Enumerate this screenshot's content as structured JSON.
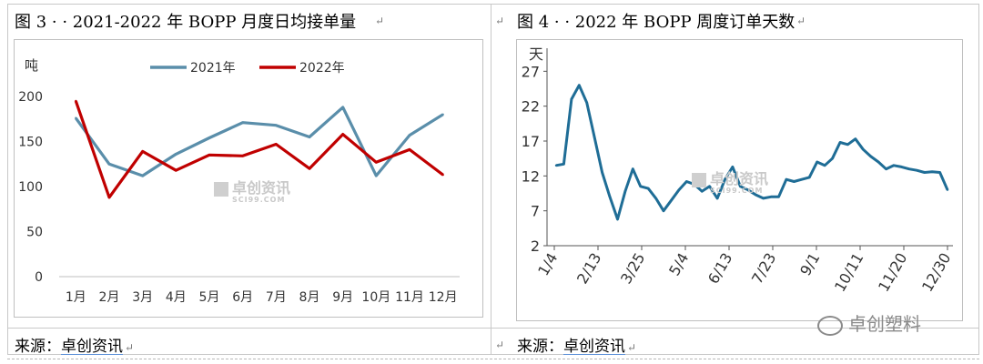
{
  "left": {
    "title": "图 3 · · 2021-2022 年 BOPP 月度日均接单量",
    "source_label": "来源：",
    "source_name": "卓创资讯",
    "watermark_cn": "卓创资讯",
    "watermark_en": "SCI99.COM"
  },
  "right": {
    "title": "图 4 · · 2022 年 BOPP 周度订单天数",
    "source_label": "来源：",
    "source_name": "卓创资讯",
    "watermark_cn": "卓创资讯",
    "watermark_en": "SCI99.COM"
  },
  "logo_text": "卓创塑料",
  "para_mark": "↵",
  "chart_data": [
    {
      "type": "line",
      "ylabel": "吨",
      "ylim": [
        0,
        200
      ],
      "yticks": [
        0,
        50,
        100,
        150,
        200
      ],
      "categories": [
        "1月",
        "2月",
        "3月",
        "4月",
        "5月",
        "6月",
        "7月",
        "8月",
        "9月",
        "10月",
        "11月",
        "12月"
      ],
      "series": [
        {
          "name": "2021年",
          "color": "#5a8eaa",
          "values": [
            176,
            125,
            112,
            136,
            154,
            171,
            168,
            155,
            188,
            112,
            157,
            180
          ]
        },
        {
          "name": "2022年",
          "color": "#c00000",
          "values": [
            195,
            88,
            139,
            118,
            135,
            134,
            147,
            120,
            158,
            127,
            141,
            113
          ]
        }
      ],
      "legend": "top"
    },
    {
      "type": "line",
      "ylabel": "天",
      "ylim": [
        2,
        29
      ],
      "yticks": [
        2,
        7,
        12,
        17,
        22,
        27
      ],
      "xticks": [
        "1/4",
        "2/13",
        "3/25",
        "5/4",
        "6/13",
        "7/23",
        "9/1",
        "10/11",
        "11/20",
        "12/30"
      ],
      "series": [
        {
          "name": "",
          "color": "#1f6d96",
          "values": [
            13.5,
            13.7,
            23.0,
            25.0,
            22.5,
            17.5,
            12.5,
            9.0,
            5.8,
            9.8,
            13.0,
            10.5,
            10.2,
            8.8,
            7.0,
            8.5,
            10.0,
            11.2,
            10.8,
            9.8,
            10.5,
            8.8,
            11.5,
            13.3,
            10.5,
            10.0,
            9.3,
            8.8,
            9.0,
            9.0,
            11.5,
            11.2,
            11.5,
            11.8,
            14.0,
            13.5,
            14.5,
            16.8,
            16.5,
            17.3,
            15.8,
            14.8,
            14.0,
            13.0,
            13.5,
            13.3,
            13.0,
            12.8,
            12.5,
            12.6,
            12.5,
            10.0
          ]
        }
      ]
    }
  ]
}
